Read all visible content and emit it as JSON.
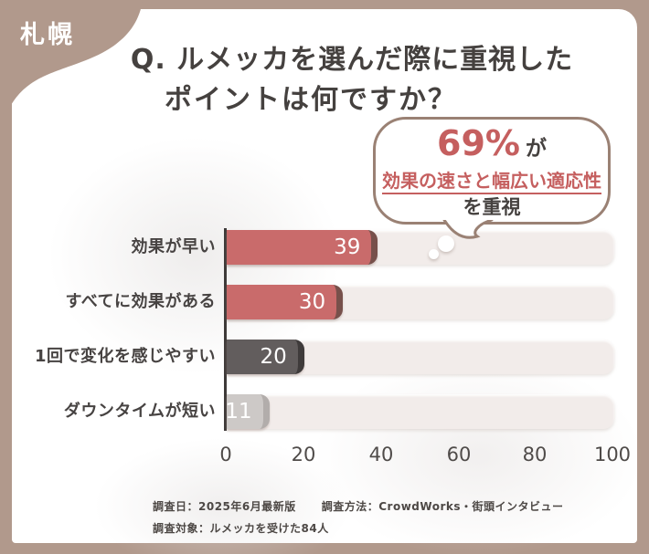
{
  "badge": {
    "location": "札幌"
  },
  "title": {
    "line1": "Q. ルメッカを選んだ際に重視した",
    "line2": "ポイントは何ですか？"
  },
  "bubble": {
    "percent": "69%",
    "suffix": "が",
    "highlight": "効果の速さと幅広い適応性",
    "emphasis": "を重視"
  },
  "chart_data": {
    "type": "bar",
    "orientation": "horizontal",
    "categories": [
      "効果が早い",
      "すべてに効果がある",
      "1回で変化を感じやすい",
      "ダウンタイムが短い"
    ],
    "values": [
      39,
      30,
      20,
      11
    ],
    "bar_colors": [
      "#c96b6b",
      "#c96b6b",
      "#625d5d",
      "#cdc9c7"
    ],
    "bar_rim_colors": [
      "#77504b",
      "#77504b",
      "#3f3b3b",
      "#b2adab"
    ],
    "x_ticks": [
      0,
      20,
      40,
      60,
      80,
      100
    ],
    "xlim": [
      0,
      100
    ],
    "xlabel": "",
    "ylabel": "",
    "grid": false,
    "legend": false,
    "track_color": "#f2ecea",
    "value_label_color": "#ffffff"
  },
  "footer": {
    "date": "調査日：2025年6月最新版",
    "method": "調査方法：CrowdWorks・街頭インタビュー",
    "target": "調査対象：ルメッカを受けた84人"
  },
  "colors": {
    "background": "#b1998c",
    "panel": "#ffffff",
    "accent": "#c96b6b",
    "text": "#45413f",
    "bubble_border": "#9a8174",
    "axis": "#3e3a39"
  }
}
